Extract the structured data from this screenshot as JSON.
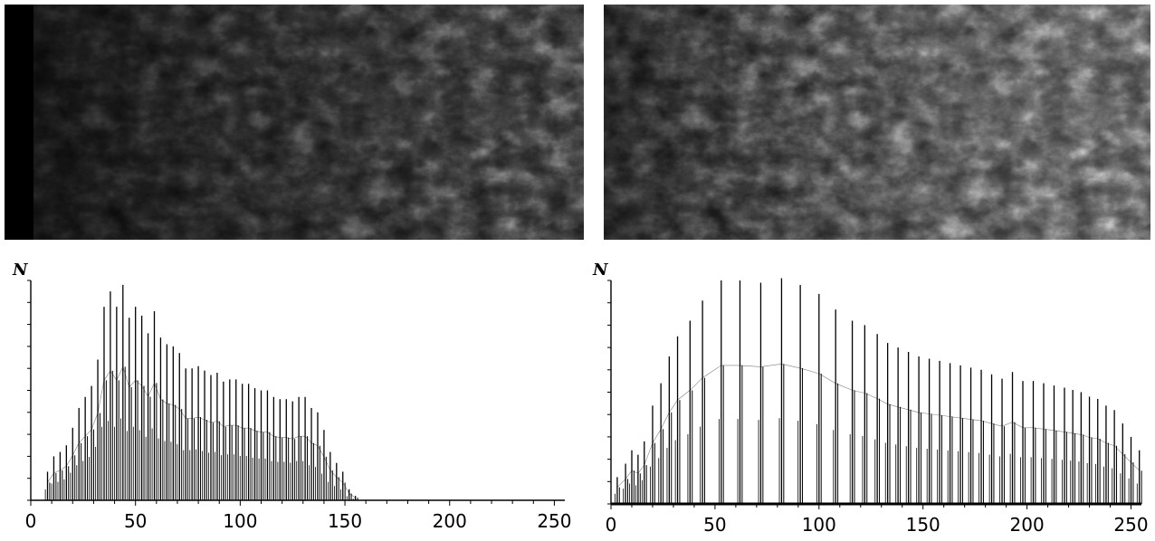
{
  "figure": {
    "left_image": {
      "name": "original-terrain-image",
      "tone": "dark, low contrast"
    },
    "right_image": {
      "name": "contrast-stretched-terrain-image",
      "tone": "bright, high contrast"
    }
  },
  "chart_data": [
    {
      "type": "bar",
      "title": "",
      "xlabel": "",
      "ylabel": "N",
      "xlim": [
        0,
        255
      ],
      "ylim": [
        0,
        100
      ],
      "grid": false,
      "xticks": [
        "0",
        "50",
        "100",
        "150",
        "200",
        "250"
      ],
      "x": [
        8,
        11,
        14,
        17,
        20,
        23,
        26,
        29,
        32,
        35,
        38,
        41,
        44,
        47,
        50,
        53,
        56,
        59,
        62,
        65,
        68,
        71,
        74,
        77,
        80,
        83,
        86,
        89,
        92,
        95,
        98,
        101,
        104,
        107,
        110,
        113,
        116,
        119,
        122,
        125,
        128,
        131,
        134,
        137,
        140,
        143,
        146,
        149,
        152,
        155
      ],
      "values": [
        13,
        20,
        22,
        25,
        33,
        42,
        47,
        52,
        64,
        88,
        95,
        88,
        98,
        83,
        88,
        84,
        76,
        86,
        74,
        71,
        70,
        67,
        60,
        60,
        61,
        59,
        57,
        58,
        54,
        55,
        55,
        53,
        53,
        51,
        50,
        50,
        47,
        46,
        46,
        45,
        47,
        47,
        42,
        40,
        32,
        22,
        17,
        13,
        5,
        2
      ]
    },
    {
      "type": "bar",
      "title": "",
      "xlabel": "",
      "ylabel": "N",
      "xlim": [
        0,
        255
      ],
      "ylim": [
        0,
        100
      ],
      "grid": false,
      "xticks": [
        "0",
        "50",
        "100",
        "150",
        "200",
        "250"
      ],
      "x": [
        3,
        7,
        10,
        13,
        16,
        20,
        24,
        28,
        32,
        38,
        44,
        53,
        62,
        72,
        82,
        91,
        100,
        108,
        116,
        122,
        128,
        133,
        138,
        143,
        148,
        153,
        158,
        163,
        168,
        173,
        178,
        183,
        188,
        193,
        198,
        203,
        208,
        213,
        218,
        222,
        226,
        230,
        234,
        238,
        242,
        246,
        250,
        254
      ],
      "values": [
        12,
        18,
        24,
        22,
        28,
        44,
        54,
        66,
        75,
        82,
        91,
        100,
        100,
        99,
        101,
        98,
        94,
        87,
        82,
        80,
        76,
        72,
        70,
        68,
        66,
        65,
        64,
        63,
        62,
        61,
        60,
        58,
        56,
        59,
        55,
        55,
        54,
        53,
        52,
        51,
        50,
        48,
        47,
        44,
        42,
        36,
        30,
        24
      ]
    }
  ]
}
